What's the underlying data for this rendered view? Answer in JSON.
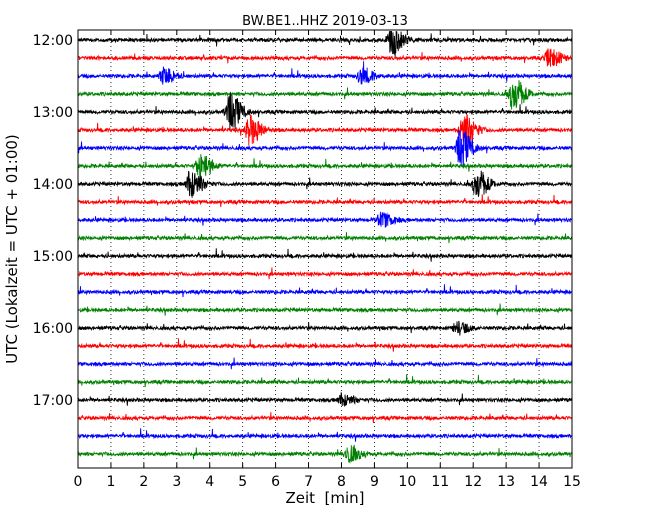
{
  "chart_data": {
    "type": "line",
    "title": "BW.BE1..HHZ 2019-03-13",
    "xlabel": "Zeit  [min]",
    "ylabel": "UTC (Lokalzeit = UTC + 01:00)",
    "xlim": [
      0,
      15
    ],
    "x_ticks": [
      "0",
      "1",
      "2",
      "3",
      "4",
      "5",
      "6",
      "7",
      "8",
      "9",
      "10",
      "11",
      "12",
      "13",
      "14",
      "15"
    ],
    "y_tick_labels": [
      "12:00",
      "13:00",
      "14:00",
      "15:00",
      "16:00",
      "17:00"
    ],
    "grid": "vertical dotted",
    "colors": [
      "#000000",
      "#ff0000",
      "#0000ff",
      "#008000"
    ],
    "trace_starts": [
      "12:00",
      "12:15",
      "12:30",
      "12:45",
      "13:00",
      "13:15",
      "13:30",
      "13:45",
      "14:00",
      "14:15",
      "14:30",
      "14:45",
      "15:00",
      "15:15",
      "15:30",
      "15:45",
      "16:00",
      "16:15",
      "16:30",
      "16:45",
      "17:00",
      "17:15",
      "17:30",
      "17:45"
    ],
    "events": [
      {
        "trace": "12:00",
        "minute": 9.5,
        "amplitude": 14
      },
      {
        "trace": "12:15",
        "minute": 14.3,
        "amplitude": 9
      },
      {
        "trace": "12:30",
        "minute": 2.6,
        "amplitude": 8
      },
      {
        "trace": "12:30",
        "minute": 8.6,
        "amplitude": 8
      },
      {
        "trace": "12:45",
        "minute": 13.2,
        "amplitude": 16
      },
      {
        "trace": "13:00",
        "minute": 4.6,
        "amplitude": 18
      },
      {
        "trace": "13:15",
        "minute": 5.2,
        "amplitude": 14
      },
      {
        "trace": "13:15",
        "minute": 11.7,
        "amplitude": 16
      },
      {
        "trace": "13:30",
        "minute": 11.6,
        "amplitude": 18
      },
      {
        "trace": "13:45",
        "minute": 3.7,
        "amplitude": 12
      },
      {
        "trace": "14:00",
        "minute": 3.4,
        "amplitude": 14
      },
      {
        "trace": "14:00",
        "minute": 12.1,
        "amplitude": 14
      },
      {
        "trace": "14:30",
        "minute": 9.2,
        "amplitude": 7
      },
      {
        "trace": "16:00",
        "minute": 11.5,
        "amplitude": 6
      },
      {
        "trace": "17:00",
        "minute": 8.0,
        "amplitude": 6
      },
      {
        "trace": "17:45",
        "minute": 8.2,
        "amplitude": 8
      }
    ]
  }
}
